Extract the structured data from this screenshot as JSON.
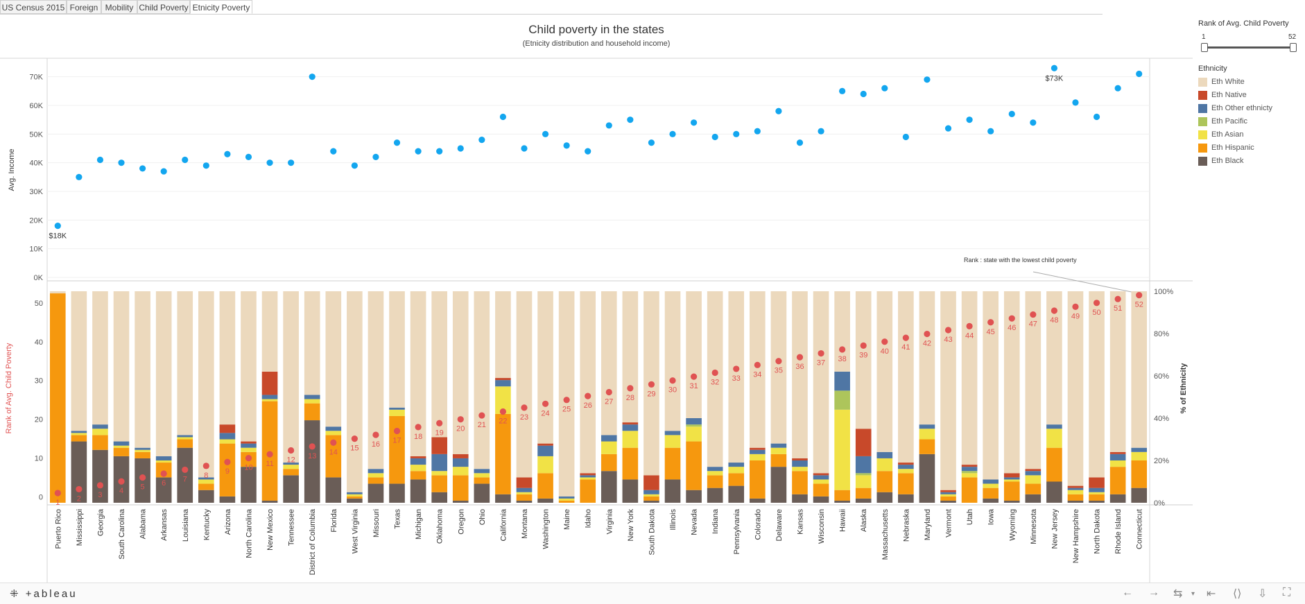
{
  "tabs": [
    "US Census 2015",
    "Foreign",
    "Mobility",
    "Child Poverty",
    "Etnicity Poverty"
  ],
  "active_tab": 4,
  "title": "Child poverty in the states",
  "subtitle": "(Etnicity distribution and household income)",
  "slider": {
    "title": "Rank of Avg. Child Poverty",
    "min_label": "1",
    "max_label": "52",
    "min": 1,
    "max": 52
  },
  "legend": {
    "title": "Ethnicity",
    "items": [
      {
        "label": "Eth White",
        "color": "#ecd9bd"
      },
      {
        "label": "Eth Native",
        "color": "#c8492a"
      },
      {
        "label": "Eth Other ethnicty",
        "color": "#4f76a4"
      },
      {
        "label": "Eth Pacific",
        "color": "#adc55b"
      },
      {
        "label": "Eth Asian",
        "color": "#f1e246"
      },
      {
        "label": "Eth Hispanic",
        "color": "#f6980e"
      },
      {
        "label": "Eth Black",
        "color": "#6a5d57"
      }
    ]
  },
  "annotation": "Rank : state with the lowest  child poverty",
  "brand": "+ableau",
  "chart_data": [
    {
      "type": "scatter",
      "ylabel": "Avg. Income",
      "ylim": [
        0,
        75000
      ],
      "y_ticks": [
        "0K",
        "10K",
        "20K",
        "30K",
        "40K",
        "50K",
        "60K",
        "70K"
      ],
      "point_labels": [
        {
          "state": "Puerto Rico",
          "label": "$18K"
        },
        {
          "state": "New Jersey",
          "label": "$73K"
        }
      ],
      "color": "#13a6ef",
      "states": [
        "Puerto Rico",
        "Mississippi",
        "Georgia",
        "South Carolina",
        "Alabama",
        "Arkansas",
        "Louisiana",
        "Kentucky",
        "Arizona",
        "North Carolina",
        "New Mexico",
        "Tennessee",
        "District of Columbia",
        "Florida",
        "West Virginia",
        "Missouri",
        "Texas",
        "Michigan",
        "Oklahoma",
        "Oregon",
        "Ohio",
        "California",
        "Montana",
        "Washington",
        "Maine",
        "Idaho",
        "Virginia",
        "New York",
        "South Dakota",
        "Illinois",
        "Nevada",
        "Indiana",
        "Pennsylvania",
        "Colorado",
        "Delaware",
        "Kansas",
        "Wisconsin",
        "Hawaii",
        "Alaska",
        "Massachusetts",
        "Nebraska",
        "Maryland",
        "Vermont",
        "Utah",
        "Iowa",
        "Wyoming",
        "Minnesota",
        "New Jersey",
        "New Hampshire",
        "North Dakota",
        "Rhode Island",
        "Connecticut"
      ],
      "income": [
        18000,
        35000,
        41000,
        40000,
        38000,
        37000,
        41000,
        39000,
        43000,
        42000,
        40000,
        40000,
        70000,
        44000,
        39000,
        42000,
        47000,
        44000,
        44000,
        45000,
        48000,
        56000,
        45000,
        50000,
        46000,
        44000,
        53000,
        55000,
        47000,
        50000,
        54000,
        49000,
        50000,
        51000,
        58000,
        47000,
        51000,
        65000,
        64000,
        66000,
        49000,
        69000,
        52000,
        55000,
        51000,
        57000,
        54000,
        73000,
        61000,
        56000,
        66000,
        71000
      ]
    },
    {
      "type": "bar",
      "stacked": true,
      "ylabel": "Rank of Avg. Child Poverty",
      "y2label": "% of Ethnicity",
      "ylim_rank": [
        -1.5,
        53
      ],
      "rank_ticks": [
        "0",
        "10",
        "20",
        "30",
        "40",
        "50"
      ],
      "pct_ticks": [
        "0%",
        "20%",
        "40%",
        "60%",
        "80%",
        "100%"
      ],
      "rank": [
        1,
        2,
        3,
        4,
        5,
        6,
        7,
        8,
        9,
        10,
        11,
        12,
        13,
        14,
        15,
        16,
        17,
        18,
        19,
        20,
        21,
        22,
        23,
        24,
        25,
        26,
        27,
        28,
        29,
        30,
        31,
        32,
        33,
        34,
        35,
        36,
        37,
        38,
        39,
        40,
        41,
        42,
        43,
        44,
        45,
        46,
        47,
        48,
        49,
        50,
        51,
        52
      ],
      "series_order": [
        "Eth Black",
        "Eth Hispanic",
        "Eth Asian",
        "Eth Pacific",
        "Eth Other ethnicty",
        "Eth Native",
        "Eth White"
      ],
      "pct": {
        "Eth Black": [
          0,
          29,
          25,
          22,
          21,
          12,
          26,
          6,
          3,
          17,
          1,
          13,
          39,
          12,
          2,
          9,
          9,
          11,
          5,
          1,
          9,
          4,
          1,
          2,
          0,
          0,
          15,
          11,
          1,
          11,
          6,
          7,
          8,
          2,
          17,
          4,
          3,
          1,
          2,
          5,
          4,
          23,
          1,
          0,
          2,
          1,
          4,
          10,
          1,
          1,
          4,
          7
        ],
        "Eth Hispanic": [
          99,
          3,
          7,
          4,
          3,
          7,
          4,
          3,
          25,
          7,
          47,
          3,
          8,
          20,
          1,
          3,
          32,
          4,
          8,
          12,
          3,
          38,
          3,
          12,
          1,
          11,
          8,
          15,
          2,
          15,
          23,
          6,
          6,
          18,
          6,
          11,
          6,
          5,
          5,
          10,
          10,
          7,
          2,
          12,
          5,
          9,
          5,
          16,
          3,
          3,
          13,
          13
        ],
        "Eth Asian": [
          0,
          1,
          3,
          1,
          1,
          1,
          1,
          2,
          2,
          2,
          1,
          2,
          2,
          2,
          1,
          2,
          3,
          3,
          2,
          4,
          2,
          13,
          1,
          8,
          1,
          1,
          6,
          8,
          1,
          6,
          7,
          2,
          3,
          3,
          3,
          2,
          2,
          38,
          6,
          6,
          2,
          5,
          1,
          2,
          2,
          1,
          4,
          9,
          2,
          1,
          3,
          4
        ],
        "Eth Pacific": [
          0,
          0,
          0,
          0,
          0,
          0,
          0,
          0,
          0,
          0,
          0,
          0,
          0,
          0,
          0,
          0,
          0,
          0,
          0,
          0,
          0,
          0,
          0,
          0,
          0,
          0,
          0,
          0,
          0,
          0,
          1,
          0,
          0,
          0,
          0,
          0,
          0,
          9,
          1,
          0,
          0,
          0,
          0,
          1,
          0,
          0,
          0,
          0,
          0,
          0,
          0,
          0
        ],
        "Eth Other ethnicty": [
          0,
          1,
          2,
          2,
          1,
          2,
          1,
          1,
          3,
          2,
          2,
          1,
          2,
          2,
          1,
          2,
          1,
          3,
          8,
          4,
          2,
          3,
          2,
          5,
          1,
          1,
          3,
          3,
          2,
          2,
          3,
          2,
          2,
          2,
          2,
          3,
          2,
          9,
          8,
          3,
          2,
          2,
          1,
          2,
          2,
          1,
          2,
          2,
          1,
          2,
          3,
          2
        ],
        "Eth Native": [
          0,
          0,
          0,
          0,
          0,
          0,
          0,
          0,
          4,
          1,
          11,
          0,
          0,
          0,
          0,
          0,
          0,
          1,
          8,
          2,
          0,
          1,
          5,
          1,
          0,
          1,
          0,
          1,
          7,
          0,
          0,
          0,
          0,
          1,
          0,
          1,
          1,
          0,
          13,
          0,
          1,
          0,
          1,
          1,
          0,
          2,
          1,
          0,
          1,
          5,
          1,
          0
        ]
      }
    }
  ]
}
